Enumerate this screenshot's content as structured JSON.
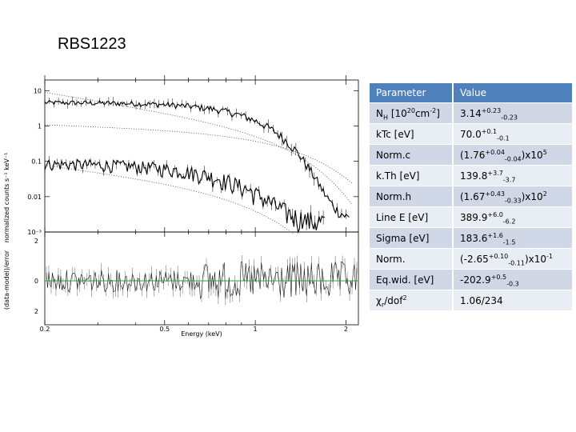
{
  "slide": {
    "title": "RBS1223"
  },
  "figure": {
    "top_ylabel": "normalized counts s⁻¹ keV⁻¹",
    "bottom_ylabel": "(data-model)/error",
    "xlabel": "Energy (keV)",
    "top_yticks": [
      "10",
      "1",
      "0.1",
      "0.01",
      "10⁻³"
    ],
    "bottom_yticks": [
      "2",
      "0",
      "2"
    ],
    "xticks": [
      "0.2",
      "0.5",
      "1",
      "2"
    ],
    "residual_line_color": "#2ca02c"
  },
  "table": {
    "headers": [
      "Parameter",
      "Value"
    ],
    "rows": [
      {
        "param": {
          "main": "N",
          "sub": "H",
          "tail": " [10",
          "sup": "20",
          "tail2": "cm",
          "sup2": "-2",
          "tail3": "]"
        },
        "value": {
          "main": "3.14",
          "sup": "+0.23",
          "sub": "-0.23",
          "tail": ""
        }
      },
      {
        "param": {
          "main": "kTc [eV]"
        },
        "value": {
          "main": "70.0",
          "sup": "+0.1",
          "sub": "-0.1",
          "tail": ""
        }
      },
      {
        "param": {
          "main": "Norm.c"
        },
        "value": {
          "main": "(1.76",
          "sup": "+0.04",
          "sub": "-0.04",
          "tail": ")x10",
          "sup2": "5"
        }
      },
      {
        "param": {
          "main": "k.Th [eV]"
        },
        "value": {
          "main": "139.8",
          "sup": "+3.7",
          "sub": "-3.7",
          "tail": ""
        }
      },
      {
        "param": {
          "main": "Norm.h"
        },
        "value": {
          "main": "(1.67",
          "sup": "+0.43",
          "sub": "-0.33",
          "tail": ")x10",
          "sup2": "2"
        }
      },
      {
        "param": {
          "main": "Line E [eV]"
        },
        "value": {
          "main": "389.9",
          "sup": "+6.0",
          "sub": "-6.2",
          "tail": ""
        }
      },
      {
        "param": {
          "main": "Sigma [eV]"
        },
        "value": {
          "main": "183.6",
          "sup": "+1.6",
          "sub": "-1.5",
          "tail": ""
        }
      },
      {
        "param": {
          "main": "Norm."
        },
        "value": {
          "main": "(-2.65",
          "sup": "+0.10",
          "sub": "-0.11",
          "tail": ")x10",
          "sup2": "-1"
        }
      },
      {
        "param": {
          "main": "Eq.wid. [eV]"
        },
        "value": {
          "main": "-202.9",
          "sup": "+0.5",
          "sub": "-0.3",
          "tail": ""
        }
      },
      {
        "param": {
          "main": "χ",
          "sup": "2",
          "sub": "r",
          "tail": "/dof"
        },
        "value": {
          "main": "1.06/234"
        }
      }
    ]
  }
}
